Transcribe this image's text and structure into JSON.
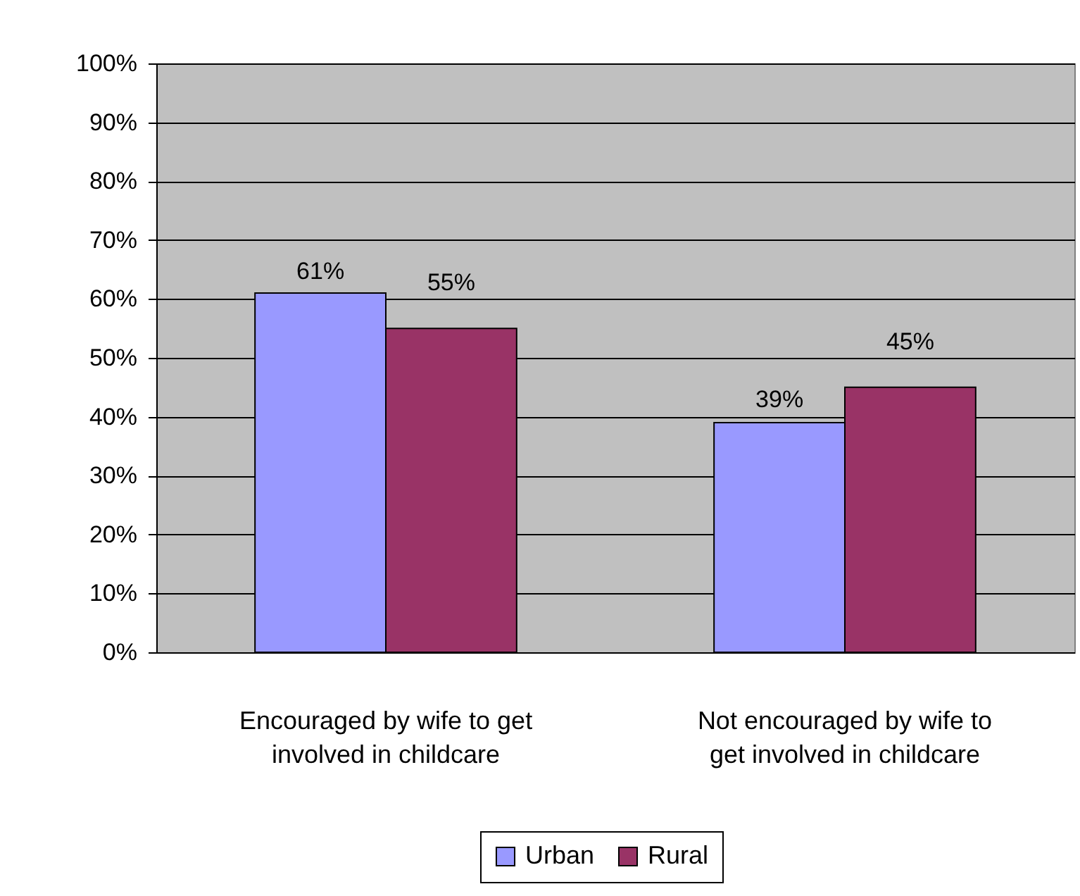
{
  "chart_data": {
    "type": "bar",
    "categories": [
      "Encouraged by wife to get involved in childcare",
      "Not encouraged by wife to get involved in childcare"
    ],
    "series": [
      {
        "name": "Urban",
        "color": "#9999ff",
        "values": [
          61,
          39
        ],
        "value_labels": [
          "61%",
          "39%"
        ]
      },
      {
        "name": "Rural",
        "color": "#993366",
        "values": [
          55,
          45
        ],
        "value_labels": [
          "55%",
          "45%"
        ]
      }
    ],
    "ylim": [
      0,
      100
    ],
    "yticks": [
      {
        "value": 0,
        "label": "0%"
      },
      {
        "value": 10,
        "label": "10%"
      },
      {
        "value": 20,
        "label": "20%"
      },
      {
        "value": 30,
        "label": "30%"
      },
      {
        "value": 40,
        "label": "40%"
      },
      {
        "value": 50,
        "label": "50%"
      },
      {
        "value": 60,
        "label": "60%"
      },
      {
        "value": 70,
        "label": "70%"
      },
      {
        "value": 80,
        "label": "80%"
      },
      {
        "value": 90,
        "label": "90%"
      },
      {
        "value": 100,
        "label": "100%"
      }
    ],
    "grid": "y",
    "legend": "bottom"
  }
}
